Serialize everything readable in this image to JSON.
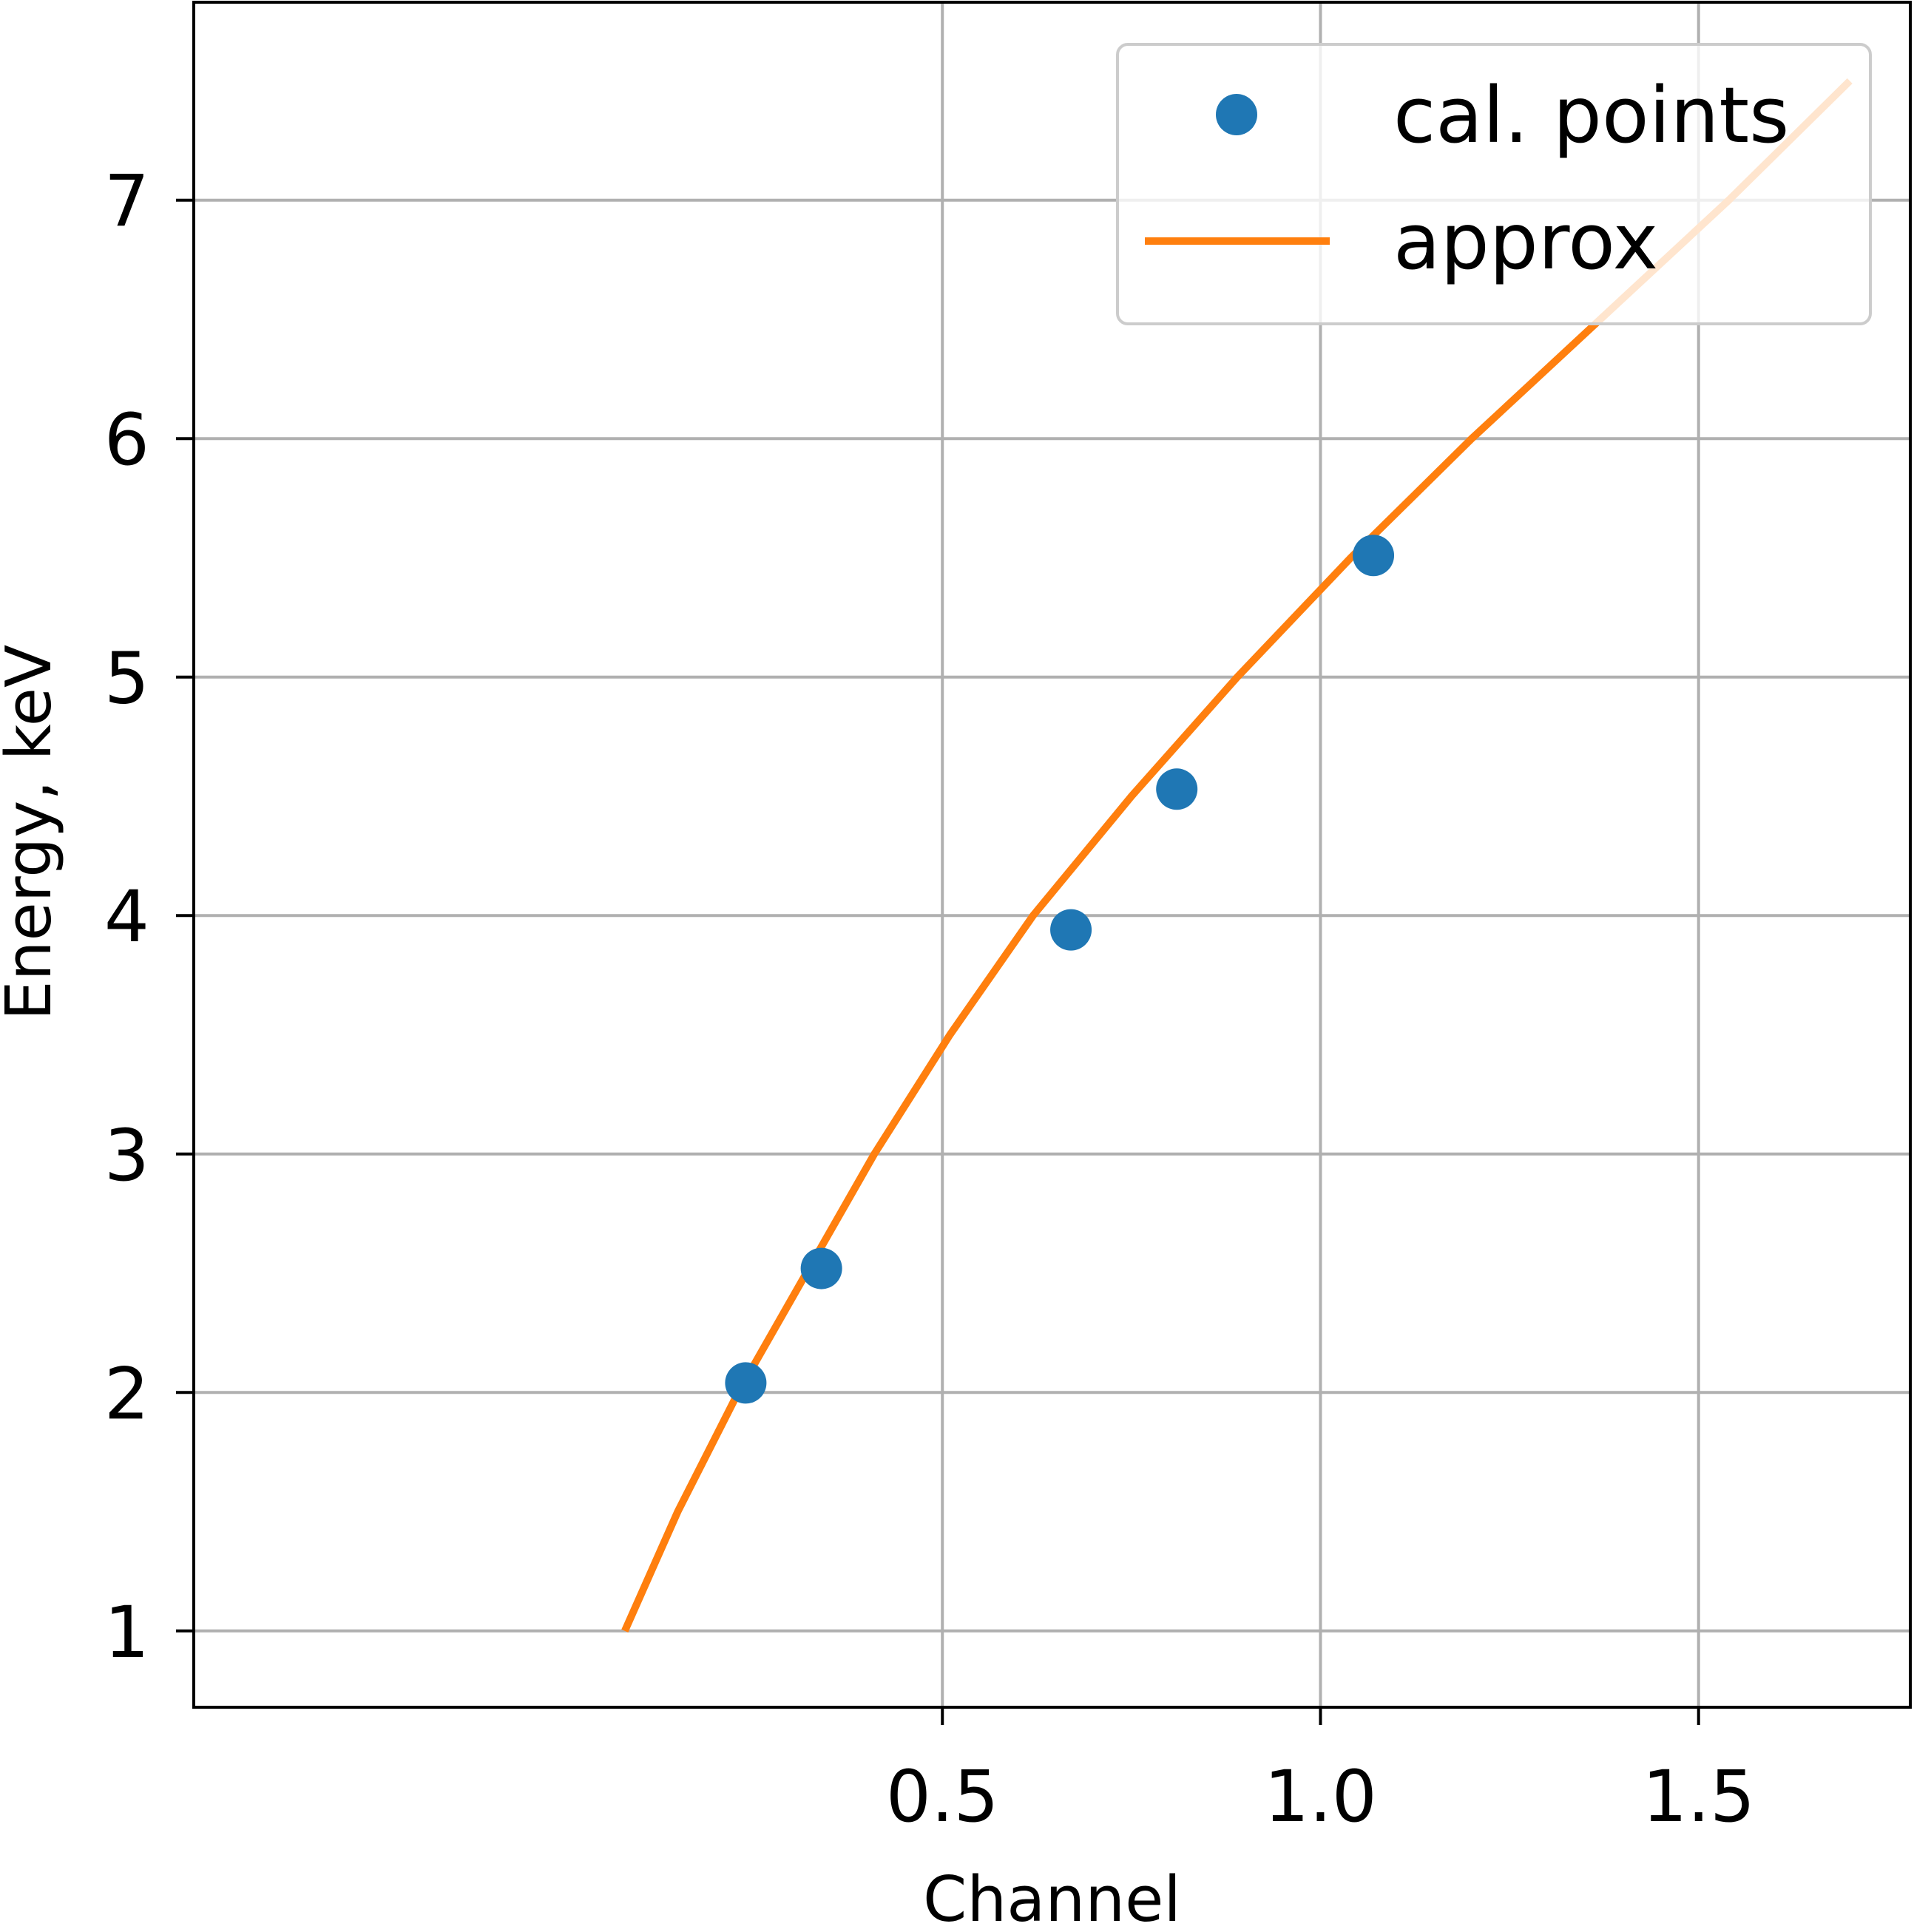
{
  "chart_data": {
    "type": "line",
    "xlabel": "Channel",
    "ylabel": "Energy, keV",
    "xlim": [
      -0.49,
      1.78
    ],
    "ylim": [
      0.68,
      7.83
    ],
    "xticks": [
      0.5,
      1.0,
      1.5
    ],
    "xtick_labels": [
      "0.5",
      "1.0",
      "1.5"
    ],
    "yticks": [
      1,
      2,
      3,
      4,
      5,
      6,
      7
    ],
    "ytick_labels": [
      "1",
      "2",
      "3",
      "4",
      "5",
      "6",
      "7"
    ],
    "grid": true,
    "legend_position": "top-right",
    "series": [
      {
        "name": "cal. points",
        "kind": "scatter",
        "color": "#1f77b4",
        "points": [
          [
            0.24,
            2.04
          ],
          [
            0.34,
            2.52
          ],
          [
            0.67,
            3.94
          ],
          [
            0.81,
            4.53
          ],
          [
            1.07,
            5.51
          ]
        ]
      },
      {
        "name": "approx",
        "kind": "line",
        "color": "#ff7f0e",
        "points": [
          [
            0.08,
            1.0
          ],
          [
            0.15,
            1.5
          ],
          [
            0.23,
            2.0
          ],
          [
            0.32,
            2.5
          ],
          [
            0.41,
            3.0
          ],
          [
            0.51,
            3.5
          ],
          [
            0.62,
            4.0
          ],
          [
            0.75,
            4.5
          ],
          [
            0.89,
            5.0
          ],
          [
            1.04,
            5.5
          ],
          [
            1.2,
            6.0
          ],
          [
            1.37,
            6.5
          ],
          [
            1.54,
            7.0
          ],
          [
            1.7,
            7.5
          ]
        ]
      }
    ]
  }
}
